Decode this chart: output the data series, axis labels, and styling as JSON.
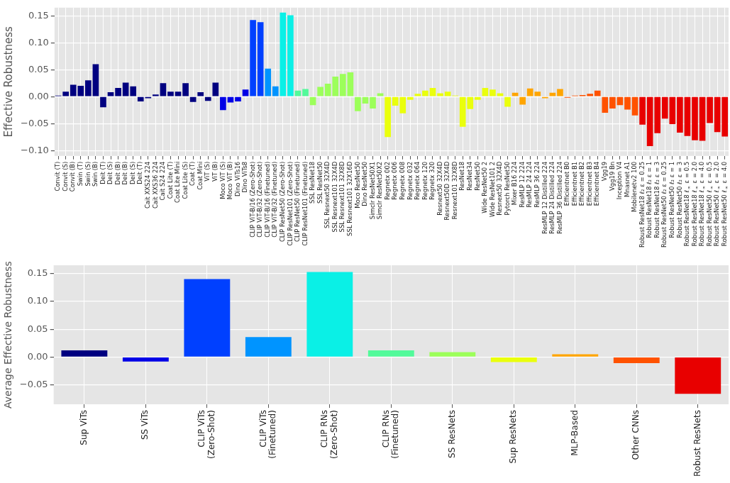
{
  "chart_data": [
    {
      "type": "bar",
      "ylabel": "Effective Robustness",
      "grid": true,
      "categories": [
        "Convit (T)",
        "Convit (S)",
        "Convit (B)",
        "Swin (T)",
        "Swin (S)",
        "Swin (B)",
        "Deit (T)",
        "Deit (S)",
        "Deit (B)",
        "Deit (B)",
        "Deit (S)",
        "Deit (T)",
        "Cait XXS24 224",
        "Cait XXS36 224",
        "Cait S24 224",
        "Coat Lite (T)",
        "Coat Lite Mini",
        "Coat Lite (S)",
        "Coat (T)",
        "Coat Mini",
        "ViT (S)",
        "ViT (B)",
        "Moco ViT (S)",
        "Moco ViT (B)",
        "Dino ViTs16",
        "Dino ViTs8",
        "CLIP ViT-B/16 (Zero-Shot)",
        "CLIP ViT-B/32 (Zero-Shot)",
        "CLIP ViT-B/16 (Finetuned)",
        "CLIP ViT-B/32 (Finetuned)",
        "CLIP ResNet50 (Zero-Shot)",
        "CLIP ResNet101 (Zero-Shot)",
        "CLIP ResNet50 (Finetuned)",
        "CLIP ResNet101 (Finetuned)",
        "SSL ResNet18",
        "SSL ResNet50",
        "SSL Resnext50 32X4D",
        "SSL Resnext101 32X4D",
        "SSL Resnext101 32X8D",
        "SSL Resnext101 32X16D",
        "Moco ResNet50",
        "Dino ResNet50",
        "Simclr ResNet50X1",
        "Simclr ResNet50X2",
        "Regnetx 002",
        "Regnetx 006",
        "Regnetx 008",
        "Regnetx 032",
        "Regnetx 064",
        "Regnetx 120",
        "Regnetx 320",
        "Resnext50 32X4D",
        "Resnext50D 32X4D",
        "Resnext101 32X8D",
        "ResNet18",
        "ResNet34",
        "ResNet50",
        "Wide ResNet50 2",
        "Wide ResNet101 2",
        "Resnext50 32X4D",
        "Pytorch ResNet50",
        "Mixer B16 224",
        "ResMLP 12 224",
        "ResMLP 24 224",
        "ResMLP 36 224",
        "ResMLP 12 Distilled 224",
        "ResMLP 24 Distilled 224",
        "ResMLP 36 Distilled 224",
        "Efficientnet B0",
        "Efficientnet B1",
        "Efficientnet B2",
        "Efficientnet B3",
        "Efficientnet B4",
        "Vgg19",
        "Vgg19 Bn",
        "Inception V4",
        "Mnasnet A1",
        "Mobilenetv2 100",
        "Robust ResNet18 ℓ₂ ε = 0.25",
        "Robust ResNet18 ℓ₂ ε = 1",
        "Robust ResNet18 ℓ₂ ε = 3",
        "Robust ResNet50 ℓ₂ ε = 0.25",
        "Robust ResNet50 ℓ₂ ε = 1",
        "Robust ResNet50 ℓ₂ ε = 3",
        "Robust ResNet18 ℓ$_{∞}$ ε = 0.5",
        "Robust ResNet18 ℓ$_{∞}$ ε = 2.0",
        "Robust ResNet18 ℓ$_{∞}$ ε = 4.0",
        "Robust ResNet50 ℓ$_{∞}$ ε = 0.5",
        "Robust ResNet50 ℓ$_{∞}$ ε = 2.0",
        "Robust ResNet50 ℓ$_{∞}$ ε = 4.0"
      ],
      "values": [
        0.002,
        0.009,
        0.022,
        0.02,
        0.03,
        0.06,
        -0.02,
        0.008,
        0.016,
        0.026,
        0.019,
        -0.009,
        -0.003,
        0.004,
        0.025,
        0.009,
        0.009,
        0.025,
        -0.01,
        0.008,
        -0.008,
        0.026,
        -0.025,
        -0.011,
        -0.009,
        0.013,
        0.142,
        0.138,
        0.052,
        0.019,
        0.156,
        0.151,
        0.011,
        0.014,
        -0.016,
        0.018,
        0.024,
        0.037,
        0.042,
        0.045,
        -0.027,
        -0.013,
        -0.022,
        0.006,
        -0.075,
        -0.017,
        -0.031,
        -0.006,
        0.005,
        0.011,
        0.016,
        0.006,
        0.009,
        0.002,
        -0.056,
        -0.023,
        -0.006,
        0.016,
        0.013,
        0.006,
        -0.019,
        0.007,
        -0.015,
        0.015,
        0.009,
        -0.003,
        0.007,
        0.014,
        -0.002,
        0.002,
        0.003,
        0.005,
        0.011,
        -0.03,
        -0.022,
        -0.016,
        -0.024,
        -0.035,
        -0.052,
        -0.092,
        -0.068,
        -0.041,
        -0.051,
        -0.067,
        -0.073,
        -0.081,
        -0.082,
        -0.049,
        -0.066,
        -0.074
      ],
      "colors": [
        "#000080",
        "#000080",
        "#000080",
        "#000080",
        "#000080",
        "#000080",
        "#000080",
        "#000080",
        "#000080",
        "#000080",
        "#000080",
        "#000080",
        "#000080",
        "#000080",
        "#000080",
        "#000080",
        "#000080",
        "#000080",
        "#000080",
        "#000080",
        "#000080",
        "#000080",
        "#0000e6",
        "#0000e6",
        "#0000e6",
        "#0000e6",
        "#0040ff",
        "#0040ff",
        "#0094ff",
        "#0094ff",
        "#0af0e6",
        "#0af0e6",
        "#52fa9a",
        "#52fa9a",
        "#9cff5a",
        "#9cff5a",
        "#9cff5a",
        "#9cff5a",
        "#9cff5a",
        "#9cff5a",
        "#9cff5a",
        "#9cff5a",
        "#9cff5a",
        "#9cff5a",
        "#eaff0c",
        "#eaff0c",
        "#eaff0c",
        "#eaff0c",
        "#eaff0c",
        "#eaff0c",
        "#eaff0c",
        "#eaff0c",
        "#eaff0c",
        "#eaff0c",
        "#eaff0c",
        "#eaff0c",
        "#eaff0c",
        "#eaff0c",
        "#eaff0c",
        "#eaff0c",
        "#eaff0c",
        "#ffa500",
        "#ffa500",
        "#ffa500",
        "#ffa500",
        "#ffa500",
        "#ffa500",
        "#ffa500",
        "#ff5200",
        "#ff5200",
        "#ff5200",
        "#ff5200",
        "#ff5200",
        "#ff5200",
        "#ff5200",
        "#ff5200",
        "#ff5200",
        "#ff5200",
        "#e80000",
        "#e80000",
        "#e80000",
        "#e80000",
        "#e80000",
        "#e80000",
        "#e80000",
        "#e80000",
        "#e80000",
        "#e80000",
        "#e80000",
        "#e80000"
      ],
      "ylim": [
        -0.11,
        0.165
      ],
      "yticks": [
        {
          "value": -0.1,
          "label": "−0.10"
        },
        {
          "value": -0.05,
          "label": "−0.05"
        },
        {
          "value": 0,
          "label": "0.00"
        },
        {
          "value": 0.05,
          "label": "0.05"
        },
        {
          "value": 0.1,
          "label": "0.10"
        },
        {
          "value": 0.15,
          "label": "0.15"
        }
      ]
    },
    {
      "type": "bar",
      "ylabel": "Average Effective Robustness",
      "grid": true,
      "categories": [
        "Sup ViTs",
        "SS ViTs",
        "CLIP ViTs\n(Zero-Shot)",
        "CLIP ViTs\n(Finetuned)",
        "CLIP RNs\n(Zero-Shot)",
        "CLIP RNs\n(Finetuned)",
        "SS ResNets",
        "Sup ResNets",
        "MLP-Based",
        "Other CNNs",
        "Robust ResNets"
      ],
      "values": [
        0.012,
        -0.008,
        0.14,
        0.036,
        0.153,
        0.012,
        0.009,
        -0.009,
        0.005,
        -0.011,
        -0.066
      ],
      "colors": [
        "#000080",
        "#0000e6",
        "#0040ff",
        "#0094ff",
        "#0af0e6",
        "#52fa9a",
        "#9cff5a",
        "#eaff0c",
        "#ffa500",
        "#ff5200",
        "#e80000"
      ],
      "ylim": [
        -0.085,
        0.165
      ],
      "yticks": [
        {
          "value": -0.05,
          "label": "−0.05"
        },
        {
          "value": 0,
          "label": "0.00"
        },
        {
          "value": 0.05,
          "label": "0.05"
        },
        {
          "value": 0.1,
          "label": "0.10"
        },
        {
          "value": 0.15,
          "label": "0.15"
        }
      ]
    }
  ]
}
